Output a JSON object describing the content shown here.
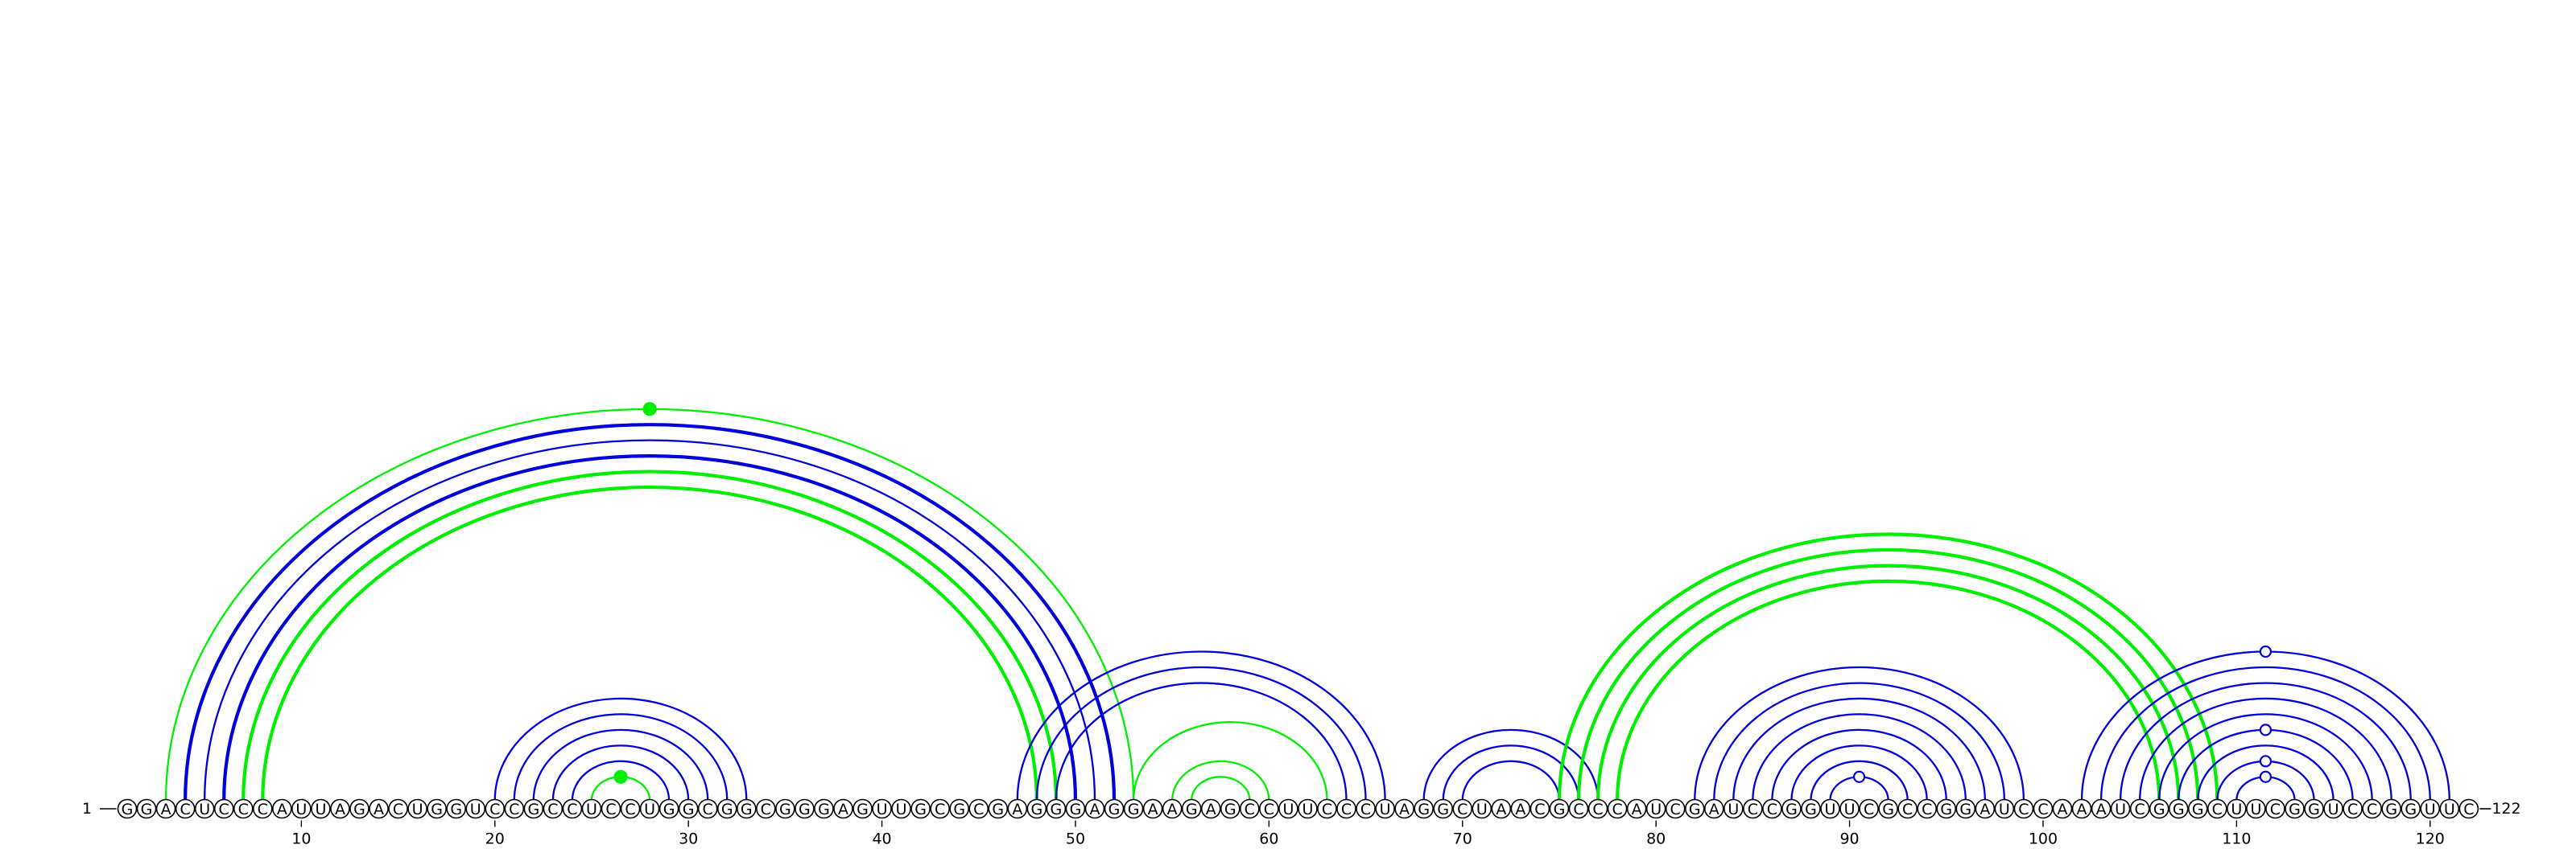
{
  "diagram": {
    "type": "rna-arc-diagram",
    "start_label": "1",
    "end_label": "122",
    "sequence": "GGACUCCCAUUAGACUGGUCCGCCUCCUGGCGGCGGGAGUUGCGCGAGGGAGGAAGAGCCUUCCCUAGGCUAACGCCCAUCGAUCCGGUUCGCCGGAUCCAAAUCGGGCUUCGGUCCGGUUC",
    "tick_labels": [
      10,
      20,
      30,
      40,
      50,
      60,
      70,
      80,
      90,
      100,
      110,
      120
    ],
    "colors": {
      "blue": "#0000dd",
      "green": "#00ee00"
    },
    "arcs": [
      {
        "i": 4,
        "j": 52,
        "color": "blue",
        "bold": true
      },
      {
        "i": 5,
        "j": 51,
        "color": "blue",
        "bold": false
      },
      {
        "i": 6,
        "j": 50,
        "color": "blue",
        "bold": true
      },
      {
        "i": 7,
        "j": 49,
        "color": "green",
        "bold": true
      },
      {
        "i": 8,
        "j": 48,
        "color": "green",
        "bold": true
      },
      {
        "i": 3,
        "j": 53,
        "color": "green",
        "bold": false
      },
      {
        "i": 20,
        "j": 33,
        "color": "blue",
        "bold": false
      },
      {
        "i": 21,
        "j": 32,
        "color": "blue",
        "bold": false
      },
      {
        "i": 22,
        "j": 31,
        "color": "blue",
        "bold": false
      },
      {
        "i": 23,
        "j": 30,
        "color": "blue",
        "bold": false
      },
      {
        "i": 24,
        "j": 29,
        "color": "blue",
        "bold": false
      },
      {
        "i": 25,
        "j": 28,
        "color": "green",
        "bold": false
      },
      {
        "i": 47,
        "j": 66,
        "color": "blue",
        "bold": false
      },
      {
        "i": 48,
        "j": 65,
        "color": "blue",
        "bold": false
      },
      {
        "i": 49,
        "j": 64,
        "color": "blue",
        "bold": false
      },
      {
        "i": 53,
        "j": 63,
        "color": "green",
        "bold": false
      },
      {
        "i": 55,
        "j": 60,
        "color": "green",
        "bold": false
      },
      {
        "i": 56,
        "j": 59,
        "color": "green",
        "bold": false
      },
      {
        "i": 68,
        "j": 77,
        "color": "blue",
        "bold": false
      },
      {
        "i": 69,
        "j": 76,
        "color": "blue",
        "bold": false
      },
      {
        "i": 70,
        "j": 75,
        "color": "blue",
        "bold": false
      },
      {
        "i": 75,
        "j": 109,
        "color": "green",
        "bold": true
      },
      {
        "i": 76,
        "j": 108,
        "color": "green",
        "bold": true
      },
      {
        "i": 77,
        "j": 107,
        "color": "green",
        "bold": true
      },
      {
        "i": 78,
        "j": 106,
        "color": "green",
        "bold": true
      },
      {
        "i": 82,
        "j": 99,
        "color": "blue",
        "bold": false
      },
      {
        "i": 83,
        "j": 98,
        "color": "blue",
        "bold": false
      },
      {
        "i": 84,
        "j": 97,
        "color": "blue",
        "bold": false
      },
      {
        "i": 85,
        "j": 96,
        "color": "blue",
        "bold": false
      },
      {
        "i": 86,
        "j": 95,
        "color": "blue",
        "bold": false
      },
      {
        "i": 87,
        "j": 94,
        "color": "blue",
        "bold": false
      },
      {
        "i": 88,
        "j": 93,
        "color": "blue",
        "bold": false
      },
      {
        "i": 89,
        "j": 92,
        "color": "blue",
        "bold": false
      },
      {
        "i": 102,
        "j": 121,
        "color": "blue",
        "bold": false
      },
      {
        "i": 103,
        "j": 120,
        "color": "blue",
        "bold": false
      },
      {
        "i": 104,
        "j": 119,
        "color": "blue",
        "bold": false
      },
      {
        "i": 105,
        "j": 118,
        "color": "blue",
        "bold": false
      },
      {
        "i": 106,
        "j": 117,
        "color": "blue",
        "bold": false
      },
      {
        "i": 107,
        "j": 116,
        "color": "blue",
        "bold": false
      },
      {
        "i": 108,
        "j": 115,
        "color": "blue",
        "bold": false
      },
      {
        "i": 109,
        "j": 114,
        "color": "blue",
        "bold": false
      },
      {
        "i": 110,
        "j": 113,
        "color": "blue",
        "bold": false
      }
    ],
    "markers": [
      {
        "arc": 5,
        "fill": "green"
      },
      {
        "arc": 11,
        "fill": "green"
      },
      {
        "arc": 32,
        "fill": "white"
      },
      {
        "arc": 33,
        "fill": "white"
      },
      {
        "arc": 38,
        "fill": "white"
      },
      {
        "arc": 40,
        "fill": "white"
      },
      {
        "arc": 41,
        "fill": "white"
      }
    ]
  }
}
